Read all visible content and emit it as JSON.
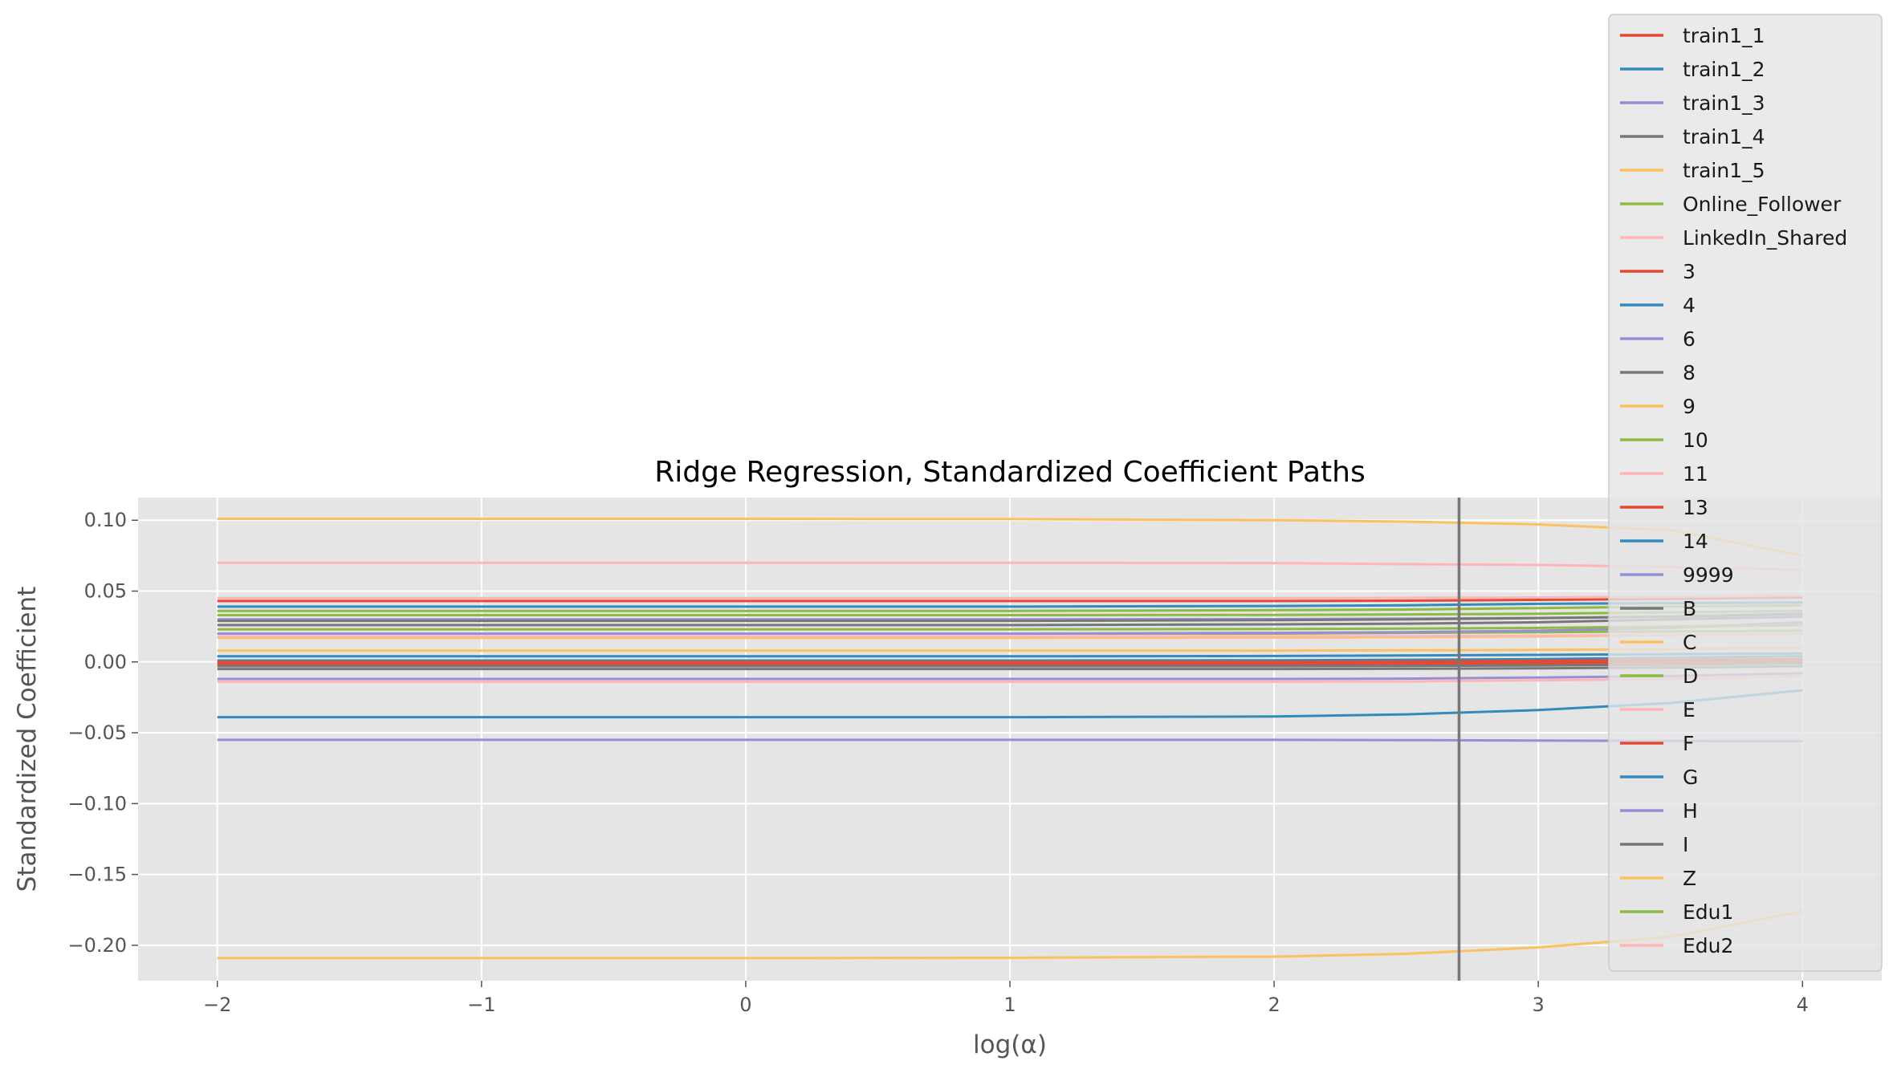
{
  "chart_data": {
    "type": "line",
    "title": "Ridge Regression, Standardized Coefficient Paths",
    "xlabel": "log(α)",
    "ylabel": "Standardized Coefficient",
    "xlim": [
      -2.3,
      4.3
    ],
    "ylim": [
      -0.225,
      0.116
    ],
    "xticks": [
      -2,
      -1,
      0,
      1,
      2,
      3,
      4
    ],
    "xtick_labels": [
      "−2",
      "−1",
      "0",
      "1",
      "2",
      "3",
      "4"
    ],
    "yticks": [
      0.1,
      0.05,
      0.0,
      -0.05,
      -0.1,
      -0.15,
      -0.2
    ],
    "ytick_labels": [
      "0.10",
      "0.05",
      "0.00",
      "−0.05",
      "−0.10",
      "−0.15",
      "−0.20"
    ],
    "grid": true,
    "legend_position": "upper-right",
    "vline_x": 2.7,
    "x": [
      -2,
      -1,
      0,
      1,
      2,
      2.5,
      3,
      3.5,
      4
    ],
    "colors": {
      "background": "#e5e5e5",
      "grid": "#ffffff",
      "vline": "#777777"
    },
    "series": [
      {
        "name": "train1_1",
        "color": "#E24A33",
        "values": [
          0.043,
          0.043,
          0.043,
          0.043,
          0.043,
          0.0432,
          0.0438,
          0.0445,
          0.0455
        ]
      },
      {
        "name": "train1_2",
        "color": "#348ABD",
        "values": [
          0.001,
          0.001,
          0.001,
          0.001,
          0.0012,
          0.0015,
          0.002,
          0.003,
          0.004
        ]
      },
      {
        "name": "train1_3",
        "color": "#988ED5",
        "values": [
          -0.012,
          -0.012,
          -0.012,
          -0.012,
          -0.012,
          -0.0118,
          -0.011,
          -0.01,
          -0.008
        ]
      },
      {
        "name": "train1_4",
        "color": "#777777",
        "values": [
          0.026,
          0.026,
          0.026,
          0.026,
          0.0265,
          0.027,
          0.028,
          0.03,
          0.032
        ]
      },
      {
        "name": "train1_5",
        "color": "#FBC15E",
        "values": [
          0.101,
          0.101,
          0.101,
          0.1008,
          0.1,
          0.099,
          0.097,
          0.093,
          0.075
        ]
      },
      {
        "name": "Online_Follower",
        "color": "#8EBA42",
        "values": [
          0.036,
          0.036,
          0.036,
          0.036,
          0.0365,
          0.037,
          0.038,
          0.039,
          0.04
        ]
      },
      {
        "name": "LinkedIn_Shared",
        "color": "#FFB5B8",
        "values": [
          0.07,
          0.07,
          0.07,
          0.07,
          0.0698,
          0.069,
          0.0685,
          0.067,
          0.065
        ]
      },
      {
        "name": "3",
        "color": "#E24A33",
        "values": [
          -0.002,
          -0.002,
          -0.002,
          -0.002,
          -0.002,
          -0.0018,
          -0.0015,
          -0.001,
          0.0
        ]
      },
      {
        "name": "4",
        "color": "#348ABD",
        "values": [
          0.004,
          0.004,
          0.004,
          0.004,
          0.0042,
          0.0045,
          0.005,
          0.0055,
          0.006
        ]
      },
      {
        "name": "6",
        "color": "#988ED5",
        "values": [
          -0.055,
          -0.055,
          -0.055,
          -0.055,
          -0.055,
          -0.0552,
          -0.0555,
          -0.0558,
          -0.056
        ]
      },
      {
        "name": "8",
        "color": "#777777",
        "values": [
          -0.003,
          -0.003,
          -0.003,
          -0.003,
          -0.003,
          -0.0028,
          -0.0025,
          -0.002,
          -0.001
        ]
      },
      {
        "name": "9",
        "color": "#FBC15E",
        "values": [
          0.017,
          0.017,
          0.017,
          0.017,
          0.0172,
          0.0175,
          0.018,
          0.019,
          0.02
        ]
      },
      {
        "name": "10",
        "color": "#8EBA42",
        "values": [
          0.02,
          0.02,
          0.02,
          0.02,
          0.02,
          0.0205,
          0.021,
          0.0215,
          0.022
        ]
      },
      {
        "name": "11",
        "color": "#FFB5B8",
        "values": [
          -0.014,
          -0.014,
          -0.014,
          -0.014,
          -0.014,
          -0.0138,
          -0.013,
          -0.012,
          -0.01
        ]
      },
      {
        "name": "13",
        "color": "#E24A33",
        "values": [
          0.0,
          0.0,
          0.0,
          0.0,
          0.0,
          0.0003,
          0.0008,
          0.0015,
          0.002
        ]
      },
      {
        "name": "14",
        "color": "#348ABD",
        "values": [
          -0.039,
          -0.039,
          -0.039,
          -0.039,
          -0.0385,
          -0.037,
          -0.034,
          -0.029,
          -0.02
        ]
      },
      {
        "name": "9999",
        "color": "#988ED5",
        "values": [
          0.02,
          0.02,
          0.02,
          0.02,
          0.0205,
          0.021,
          0.022,
          0.024,
          0.028
        ]
      },
      {
        "name": "B",
        "color": "#777777",
        "values": [
          -0.005,
          -0.005,
          -0.005,
          -0.005,
          -0.005,
          -0.0048,
          -0.0045,
          -0.004,
          -0.003
        ]
      },
      {
        "name": "C",
        "color": "#FBC15E",
        "values": [
          0.008,
          0.008,
          0.008,
          0.008,
          0.008,
          0.0082,
          0.0085,
          0.009,
          0.01
        ]
      },
      {
        "name": "D",
        "color": "#8EBA42",
        "values": [
          0.033,
          0.033,
          0.033,
          0.033,
          0.0332,
          0.0335,
          0.034,
          0.035,
          0.036
        ]
      },
      {
        "name": "E",
        "color": "#FFB5B8",
        "values": [
          0.018,
          0.018,
          0.018,
          0.018,
          0.018,
          0.0182,
          0.0185,
          0.019,
          0.02
        ]
      },
      {
        "name": "F",
        "color": "#E24A33",
        "values": [
          -0.001,
          -0.001,
          -0.001,
          -0.001,
          -0.001,
          -0.0008,
          -0.0005,
          0.0,
          0.001
        ]
      },
      {
        "name": "G",
        "color": "#348ABD",
        "values": [
          0.039,
          0.039,
          0.039,
          0.039,
          0.0395,
          0.04,
          0.041,
          0.0415,
          0.042
        ]
      },
      {
        "name": "H",
        "color": "#988ED5",
        "values": [
          0.03,
          0.03,
          0.03,
          0.03,
          0.0302,
          0.0305,
          0.031,
          0.032,
          0.033
        ]
      },
      {
        "name": "I",
        "color": "#777777",
        "values": [
          0.029,
          0.029,
          0.029,
          0.029,
          0.0295,
          0.03,
          0.031,
          0.032,
          0.034
        ]
      },
      {
        "name": "Z",
        "color": "#FBC15E",
        "values": [
          -0.209,
          -0.209,
          -0.209,
          -0.2088,
          -0.208,
          -0.206,
          -0.2015,
          -0.194,
          -0.176
        ]
      },
      {
        "name": "Edu1",
        "color": "#8EBA42",
        "values": [
          0.023,
          0.023,
          0.023,
          0.023,
          0.0232,
          0.0235,
          0.024,
          0.025,
          0.026
        ]
      },
      {
        "name": "Edu2",
        "color": "#FFB5B8",
        "values": [
          0.045,
          0.045,
          0.045,
          0.045,
          0.045,
          0.0452,
          0.0455,
          0.046,
          0.047
        ]
      }
    ]
  }
}
